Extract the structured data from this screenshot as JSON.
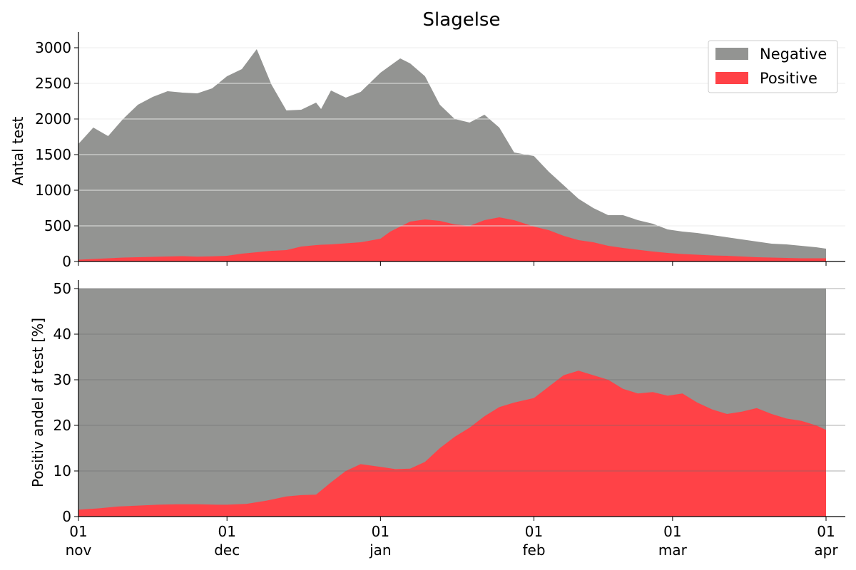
{
  "chart_data": [
    {
      "type": "area",
      "stacked": true,
      "title": "Slagelse",
      "ylabel": "Antal test",
      "xlabel": "",
      "ylim": [
        0,
        3100
      ],
      "yticks": [
        0,
        500,
        1000,
        1500,
        2000,
        2500,
        3000
      ],
      "grid": true,
      "legend_position": "top-right",
      "x_start": "2021-11-01",
      "x_end": "2022-04-01",
      "x": [
        "2021-11-01",
        "2021-11-04",
        "2021-11-07",
        "2021-11-10",
        "2021-11-13",
        "2021-11-16",
        "2021-11-19",
        "2021-11-22",
        "2021-11-25",
        "2021-11-28",
        "2021-12-01",
        "2021-12-04",
        "2021-12-07",
        "2021-12-10",
        "2021-12-13",
        "2021-12-16",
        "2021-12-19",
        "2021-12-20",
        "2021-12-22",
        "2021-12-25",
        "2021-12-28",
        "2022-01-01",
        "2022-01-03",
        "2022-01-05",
        "2022-01-07",
        "2022-01-10",
        "2022-01-13",
        "2022-01-16",
        "2022-01-19",
        "2022-01-22",
        "2022-01-25",
        "2022-01-28",
        "2022-02-01",
        "2022-02-04",
        "2022-02-07",
        "2022-02-10",
        "2022-02-13",
        "2022-02-16",
        "2022-02-19",
        "2022-02-22",
        "2022-02-25",
        "2022-02-28",
        "2022-03-03",
        "2022-03-06",
        "2022-03-09",
        "2022-03-12",
        "2022-03-15",
        "2022-03-18",
        "2022-03-21",
        "2022-03-24",
        "2022-03-27",
        "2022-03-30",
        "2022-04-01"
      ],
      "series": [
        {
          "name": "Negative",
          "color": "#939492",
          "totals": [
            1650,
            1880,
            1760,
            2000,
            2200,
            2310,
            2390,
            2370,
            2360,
            2430,
            2600,
            2700,
            2980,
            2480,
            2120,
            2130,
            2230,
            2140,
            2400,
            2300,
            2380,
            2650,
            2750,
            2850,
            2780,
            2600,
            2200,
            2000,
            1950,
            2060,
            1880,
            1530,
            1480,
            1260,
            1070,
            880,
            750,
            650,
            650,
            580,
            530,
            450,
            420,
            400,
            370,
            340,
            310,
            280,
            250,
            240,
            220,
            200,
            180
          ]
        },
        {
          "name": "Positive",
          "color": "#ff4247",
          "values": [
            25,
            35,
            45,
            55,
            60,
            65,
            70,
            75,
            68,
            72,
            80,
            110,
            130,
            150,
            160,
            210,
            230,
            235,
            240,
            255,
            270,
            320,
            420,
            490,
            560,
            590,
            570,
            520,
            500,
            580,
            620,
            580,
            490,
            440,
            360,
            300,
            270,
            220,
            190,
            165,
            140,
            120,
            105,
            95,
            85,
            80,
            70,
            60,
            55,
            50,
            45,
            45,
            45
          ]
        }
      ]
    },
    {
      "type": "area",
      "title": "",
      "ylabel": "Positiv andel af test [%]",
      "xlabel": "",
      "ylim": [
        0,
        50
      ],
      "yticks": [
        0,
        10,
        20,
        30,
        40,
        50
      ],
      "grid": true,
      "x_start": "2021-11-01",
      "x_end": "2022-04-01",
      "xtick_labels": [
        {
          "date": "2021-11-01",
          "day": "01",
          "month": "nov"
        },
        {
          "date": "2021-12-01",
          "day": "01",
          "month": "dec"
        },
        {
          "date": "2022-01-01",
          "day": "01",
          "month": "jan"
        },
        {
          "date": "2022-02-01",
          "day": "01",
          "month": "feb"
        },
        {
          "date": "2022-03-01",
          "day": "01",
          "month": "mar"
        },
        {
          "date": "2022-04-01",
          "day": "01",
          "month": "apr"
        }
      ],
      "x": [
        "2021-11-01",
        "2021-11-05",
        "2021-11-09",
        "2021-11-13",
        "2021-11-17",
        "2021-11-21",
        "2021-11-25",
        "2021-11-29",
        "2021-12-01",
        "2021-12-05",
        "2021-12-09",
        "2021-12-13",
        "2021-12-16",
        "2021-12-19",
        "2021-12-22",
        "2021-12-25",
        "2021-12-28",
        "2022-01-01",
        "2022-01-04",
        "2022-01-07",
        "2022-01-10",
        "2022-01-13",
        "2022-01-16",
        "2022-01-19",
        "2022-01-22",
        "2022-01-25",
        "2022-01-28",
        "2022-02-01",
        "2022-02-04",
        "2022-02-07",
        "2022-02-10",
        "2022-02-13",
        "2022-02-16",
        "2022-02-19",
        "2022-02-22",
        "2022-02-25",
        "2022-02-28",
        "2022-03-03",
        "2022-03-06",
        "2022-03-09",
        "2022-03-12",
        "2022-03-15",
        "2022-03-18",
        "2022-03-21",
        "2022-03-24",
        "2022-03-27",
        "2022-03-30",
        "2022-04-01"
      ],
      "series": [
        {
          "name": "Negative",
          "color": "#939492",
          "values": [
            50,
            50,
            50,
            50,
            50,
            50,
            50,
            50,
            50,
            50,
            50,
            50,
            50,
            50,
            50,
            50,
            50,
            50,
            50,
            50,
            50,
            50,
            50,
            50,
            50,
            50,
            50,
            50,
            50,
            50,
            50,
            50,
            50,
            50,
            50,
            50,
            50,
            50,
            50,
            50,
            50,
            50,
            50,
            50,
            50,
            50,
            50,
            50
          ]
        },
        {
          "name": "Positive",
          "color": "#ff4247",
          "values": [
            1.5,
            1.8,
            2.2,
            2.4,
            2.6,
            2.7,
            2.7,
            2.6,
            2.6,
            2.8,
            3.5,
            4.4,
            4.7,
            4.8,
            7.5,
            10.0,
            11.5,
            10.9,
            10.4,
            10.5,
            12.0,
            15.0,
            17.5,
            19.5,
            22.0,
            24.0,
            25.0,
            26.0,
            28.5,
            31.0,
            32.0,
            31.0,
            30.0,
            28.0,
            27.0,
            27.3,
            26.5,
            27.0,
            25.0,
            23.5,
            22.5,
            23.0,
            23.8,
            22.5,
            21.5,
            21.0,
            20.0,
            19.0
          ]
        }
      ]
    }
  ]
}
